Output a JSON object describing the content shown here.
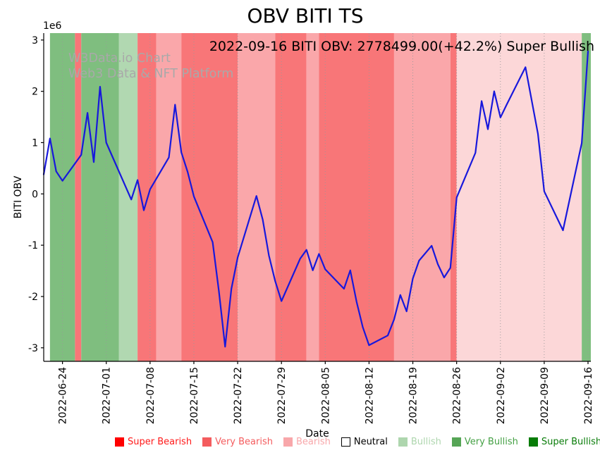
{
  "title": "OBV BITI TS",
  "annotation": "2022-09-16 BITI OBV: 2778499.00(+42.2%) Super Bullish",
  "watermark": {
    "line1": "W3Data.io Chart",
    "line2": "Web3 Data & NFT Platform"
  },
  "axes": {
    "xlabel": "Date",
    "ylabel": "BITI OBV",
    "y_offset": "1e6"
  },
  "chart_data": {
    "type": "line",
    "title": "OBV BITI TS",
    "xlabel": "Date",
    "ylabel": "BITI OBV",
    "y_offset_label": "1e6",
    "x_start": "2022-06-21",
    "x_end": "2022-09-16",
    "ylim": [
      -3270000,
      3130000
    ],
    "grid": "vertical-dotted",
    "grid_color": "#999999",
    "y_ticks": [
      3000000,
      2000000,
      1000000,
      0,
      -1000000,
      -2000000,
      -3000000
    ],
    "x_ticks": [
      "2022-06-24",
      "2022-07-01",
      "2022-07-08",
      "2022-07-15",
      "2022-07-22",
      "2022-07-29",
      "2022-08-05",
      "2022-08-12",
      "2022-08-19",
      "2022-08-26",
      "2022-09-02",
      "2022-09-09",
      "2022-09-16"
    ],
    "series": [
      {
        "name": "BITI OBV",
        "color": "#1818dc",
        "points": [
          [
            "2022-06-21",
            380000
          ],
          [
            "2022-06-22",
            1080000
          ],
          [
            "2022-06-23",
            440000
          ],
          [
            "2022-06-24",
            255000
          ],
          [
            "2022-06-27",
            760000
          ],
          [
            "2022-06-28",
            1580000
          ],
          [
            "2022-06-29",
            620000
          ],
          [
            "2022-06-30",
            2090000
          ],
          [
            "2022-07-01",
            1000000
          ],
          [
            "2022-07-05",
            -110000
          ],
          [
            "2022-07-06",
            270000
          ],
          [
            "2022-07-07",
            -320000
          ],
          [
            "2022-07-08",
            90000
          ],
          [
            "2022-07-11",
            710000
          ],
          [
            "2022-07-12",
            1740000
          ],
          [
            "2022-07-13",
            810000
          ],
          [
            "2022-07-14",
            430000
          ],
          [
            "2022-07-15",
            -50000
          ],
          [
            "2022-07-18",
            -940000
          ],
          [
            "2022-07-19",
            -1900000
          ],
          [
            "2022-07-20",
            -2980000
          ],
          [
            "2022-07-21",
            -1850000
          ],
          [
            "2022-07-22",
            -1240000
          ],
          [
            "2022-07-25",
            -40000
          ],
          [
            "2022-07-26",
            -500000
          ],
          [
            "2022-07-27",
            -1200000
          ],
          [
            "2022-07-28",
            -1700000
          ],
          [
            "2022-07-29",
            -2090000
          ],
          [
            "2022-08-01",
            -1260000
          ],
          [
            "2022-08-02",
            -1090000
          ],
          [
            "2022-08-03",
            -1490000
          ],
          [
            "2022-08-04",
            -1170000
          ],
          [
            "2022-08-05",
            -1470000
          ],
          [
            "2022-08-08",
            -1850000
          ],
          [
            "2022-08-09",
            -1490000
          ],
          [
            "2022-08-10",
            -2100000
          ],
          [
            "2022-08-11",
            -2600000
          ],
          [
            "2022-08-12",
            -2950000
          ],
          [
            "2022-08-15",
            -2760000
          ],
          [
            "2022-08-16",
            -2450000
          ],
          [
            "2022-08-17",
            -1970000
          ],
          [
            "2022-08-18",
            -2290000
          ],
          [
            "2022-08-19",
            -1650000
          ],
          [
            "2022-08-20",
            -1300000
          ],
          [
            "2022-08-22",
            -1010000
          ],
          [
            "2022-08-23",
            -1370000
          ],
          [
            "2022-08-24",
            -1630000
          ],
          [
            "2022-08-25",
            -1440000
          ],
          [
            "2022-08-26",
            -70000
          ],
          [
            "2022-08-29",
            800000
          ],
          [
            "2022-08-30",
            1810000
          ],
          [
            "2022-08-31",
            1260000
          ],
          [
            "2022-09-01",
            2000000
          ],
          [
            "2022-09-02",
            1490000
          ],
          [
            "2022-09-03",
            1740000
          ],
          [
            "2022-09-06",
            2470000
          ],
          [
            "2022-09-08",
            1170000
          ],
          [
            "2022-09-09",
            50000
          ],
          [
            "2022-09-12",
            -710000
          ],
          [
            "2022-09-15",
            990000
          ],
          [
            "2022-09-16",
            2778499
          ]
        ]
      }
    ],
    "bands": [
      {
        "start": "2022-06-21",
        "end": "2022-06-22",
        "label": "Neutral",
        "color": "#ffffff"
      },
      {
        "start": "2022-06-22",
        "end": "2022-06-26",
        "label": "Super Bullish",
        "color": "#7fbe7f"
      },
      {
        "start": "2022-06-26",
        "end": "2022-06-27",
        "label": "Super Bearish",
        "color": "#f87678"
      },
      {
        "start": "2022-06-27",
        "end": "2022-07-03",
        "label": "Super Bullish",
        "color": "#7fbe7f"
      },
      {
        "start": "2022-07-03",
        "end": "2022-07-06",
        "label": "Very Bullish",
        "color": "#b1d8b1"
      },
      {
        "start": "2022-07-06",
        "end": "2022-07-09",
        "label": "Super Bearish",
        "color": "#f87678"
      },
      {
        "start": "2022-07-09",
        "end": "2022-07-13",
        "label": "Very Bearish",
        "color": "#faa7aa"
      },
      {
        "start": "2022-07-13",
        "end": "2022-07-22",
        "label": "Super Bearish",
        "color": "#f87678"
      },
      {
        "start": "2022-07-22",
        "end": "2022-07-28",
        "label": "Very Bearish",
        "color": "#faa7aa"
      },
      {
        "start": "2022-07-28",
        "end": "2022-08-02",
        "label": "Super Bearish",
        "color": "#f87678"
      },
      {
        "start": "2022-08-02",
        "end": "2022-08-04",
        "label": "Very Bearish",
        "color": "#faa7aa"
      },
      {
        "start": "2022-08-04",
        "end": "2022-08-16",
        "label": "Super Bearish",
        "color": "#f87678"
      },
      {
        "start": "2022-08-16",
        "end": "2022-08-25",
        "label": "Very Bearish",
        "color": "#faa7aa"
      },
      {
        "start": "2022-08-25",
        "end": "2022-08-26",
        "label": "Super Bearish",
        "color": "#f87678"
      },
      {
        "start": "2022-08-26",
        "end": "2022-09-15",
        "label": "Bearish",
        "color": "#fcd7d8"
      },
      {
        "start": "2022-09-15",
        "end": "2022-09-17",
        "label": "Super Bullish",
        "color": "#7fbe7f"
      }
    ],
    "legend": {
      "position": "bottom",
      "items": [
        {
          "label": "Super Bearish",
          "color": "#ff0000",
          "text_color": "#ff1a1a"
        },
        {
          "label": "Very Bearish",
          "color": "#f45c5e",
          "text_color": "#f45c5e"
        },
        {
          "label": "Bearish",
          "color": "#f8a7aa",
          "text_color": "#f8a7aa"
        },
        {
          "label": "Neutral",
          "color": "#ffffff",
          "text_color": "#000000"
        },
        {
          "label": "Bullish",
          "color": "#aed6ae",
          "text_color": "#aed6ae"
        },
        {
          "label": "Very Bullish",
          "color": "#56a556",
          "text_color": "#44a044"
        },
        {
          "label": "Super Bullish",
          "color": "#077c07",
          "text_color": "#0a7d0a"
        }
      ]
    }
  }
}
